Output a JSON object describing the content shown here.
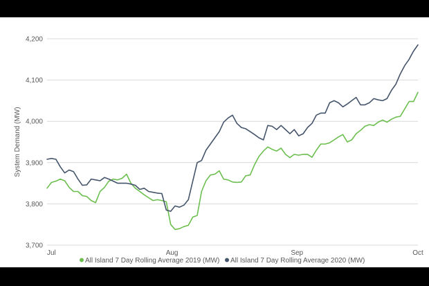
{
  "chart_data": {
    "type": "line",
    "title": "",
    "xlabel": "",
    "ylabel": "System Demand (MW)",
    "ylim": [
      3700,
      4200
    ],
    "yticks": [
      3700,
      3800,
      3900,
      4000,
      4100,
      4200
    ],
    "ytick_labels": [
      "3,700",
      "3,800",
      "3,900",
      "4,000",
      "4,100",
      "4,200"
    ],
    "xlim": [
      "2020-07-01",
      "2020-10-01"
    ],
    "xticks": [
      "Jul",
      "Aug",
      "Sep",
      "Oct"
    ],
    "grid": true,
    "legend_position": "bottom",
    "colors": {
      "2019": "#6cbf4f",
      "2020": "#44546a",
      "grid": "#d9d9d9"
    },
    "series": [
      {
        "name": "All Island 7 Day Rolling Average 2019 (MW)",
        "color": "#6cbf4f",
        "values": [
          3838,
          3852,
          3855,
          3860,
          3856,
          3840,
          3830,
          3830,
          3820,
          3818,
          3808,
          3803,
          3830,
          3840,
          3855,
          3860,
          3858,
          3862,
          3872,
          3850,
          3838,
          3830,
          3822,
          3815,
          3808,
          3810,
          3808,
          3805,
          3750,
          3738,
          3740,
          3745,
          3748,
          3768,
          3772,
          3830,
          3856,
          3870,
          3872,
          3880,
          3860,
          3858,
          3853,
          3852,
          3853,
          3868,
          3870,
          3895,
          3915,
          3928,
          3938,
          3932,
          3928,
          3935,
          3920,
          3912,
          3920,
          3918,
          3920,
          3920,
          3913,
          3930,
          3945,
          3945,
          3948,
          3955,
          3962,
          3968,
          3950,
          3955,
          3970,
          3978,
          3988,
          3992,
          3990,
          3998,
          4003,
          3998,
          4005,
          4010,
          4012,
          4030,
          4048,
          4048,
          4070
        ]
      },
      {
        "name": "All Island 7 Day Rolling Average 2020 (MW)",
        "color": "#44546a",
        "values": [
          3908,
          3910,
          3908,
          3890,
          3875,
          3882,
          3878,
          3860,
          3845,
          3846,
          3860,
          3858,
          3856,
          3864,
          3860,
          3855,
          3850,
          3850,
          3850,
          3848,
          3845,
          3835,
          3838,
          3830,
          3828,
          3826,
          3825,
          3785,
          3782,
          3795,
          3792,
          3797,
          3810,
          3855,
          3900,
          3905,
          3930,
          3945,
          3960,
          3975,
          3998,
          4008,
          4015,
          3995,
          3985,
          3982,
          3975,
          3968,
          3960,
          3955,
          3990,
          3988,
          3980,
          3990,
          3980,
          3970,
          3980,
          3965,
          3970,
          3985,
          3995,
          4015,
          4020,
          4020,
          4045,
          4050,
          4045,
          4035,
          4042,
          4050,
          4058,
          4040,
          4040,
          4045,
          4055,
          4052,
          4050,
          4055,
          4075,
          4090,
          4115,
          4135,
          4150,
          4170,
          4185
        ]
      }
    ]
  }
}
